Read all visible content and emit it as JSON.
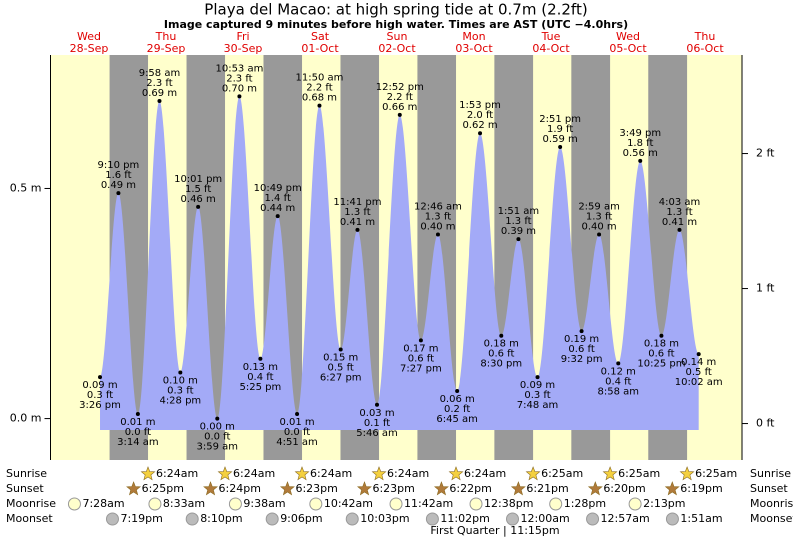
{
  "chart_data": {
    "type": "tide",
    "title": "Playa del Macao: at high  spring tide at 0.7m (2.2ft)",
    "subtitle": "Image captured 9 minutes before high water. Times are AST (UTC −4.0hrs)",
    "ylim": [
      -0.09,
      0.79
    ],
    "yticks": [
      {
        "value": 0.0,
        "label": "0.0 m"
      },
      {
        "value": 0.5,
        "label": "0.5 m"
      }
    ],
    "y2lim": [
      -0.27,
      2.73
    ],
    "y2ticks": [
      {
        "value": 0,
        "label": "0 ft"
      },
      {
        "value": 1,
        "label": "1 ft"
      },
      {
        "value": 2,
        "label": "2 ft"
      }
    ],
    "row_labels": [
      "Sunrise",
      "Sunset",
      "Moonrise",
      "Moonset"
    ],
    "moon_phase": "First Quarter | 11:15pm",
    "colors": {
      "day": "#ffffcc",
      "night": "#999999",
      "water": "#a3aaf7"
    },
    "days": [
      {
        "weekday": "Wed",
        "date": "28-Sep",
        "sunset": "6:25pm",
        "moonrise": "7:28am",
        "moonset": "7:19pm",
        "tides": [
          {
            "time": "3:26 pm",
            "height": 0.09,
            "height_label": "0.09 m",
            "feet_label": "0.3 ft"
          },
          {
            "time": "9:10 pm",
            "height": 0.49,
            "height_label": "0.49 m",
            "feet_label": "1.6 ft"
          }
        ]
      },
      {
        "weekday": "Thu",
        "date": "29-Sep",
        "sunrise": "6:24am",
        "sunset": "6:24pm",
        "moonrise": "8:33am",
        "moonset": "8:10pm",
        "tides": [
          {
            "time": "3:14 am",
            "height": 0.01,
            "height_label": "0.01 m",
            "feet_label": "0.0 ft"
          },
          {
            "time": "9:58 am",
            "height": 0.69,
            "height_label": "0.69 m",
            "feet_label": "2.3 ft"
          },
          {
            "time": "4:28 pm",
            "height": 0.1,
            "height_label": "0.10 m",
            "feet_label": "0.3 ft"
          },
          {
            "time": "10:01 pm",
            "height": 0.46,
            "height_label": "0.46 m",
            "feet_label": "1.5 ft"
          }
        ]
      },
      {
        "weekday": "Fri",
        "date": "30-Sep",
        "sunrise": "6:24am",
        "sunset": "6:23pm",
        "moonrise": "9:38am",
        "moonset": "9:06pm",
        "tides": [
          {
            "time": "3:59 am",
            "height": 0.0,
            "height_label": "0.00 m",
            "feet_label": "0.0 ft"
          },
          {
            "time": "10:53 am",
            "height": 0.7,
            "height_label": "0.70 m",
            "feet_label": "2.3 ft"
          },
          {
            "time": "5:25 pm",
            "height": 0.13,
            "height_label": "0.13 m",
            "feet_label": "0.4 ft"
          },
          {
            "time": "10:49 pm",
            "height": 0.44,
            "height_label": "0.44 m",
            "feet_label": "1.4 ft"
          }
        ]
      },
      {
        "weekday": "Sat",
        "date": "01-Oct",
        "sunrise": "6:24am",
        "sunset": "6:23pm",
        "moonrise": "10:42am",
        "moonset": "10:03pm",
        "tides": [
          {
            "time": "4:51 am",
            "height": 0.01,
            "height_label": "0.01 m",
            "feet_label": "0.0 ft"
          },
          {
            "time": "11:50 am",
            "height": 0.68,
            "height_label": "0.68 m",
            "feet_label": "2.2 ft"
          },
          {
            "time": "6:27 pm",
            "height": 0.15,
            "height_label": "0.15 m",
            "feet_label": "0.5 ft"
          },
          {
            "time": "11:41 pm",
            "height": 0.41,
            "height_label": "0.41 m",
            "feet_label": "1.3 ft"
          }
        ]
      },
      {
        "weekday": "Sun",
        "date": "02-Oct",
        "sunrise": "6:24am",
        "sunset": "6:22pm",
        "moonrise": "11:42am",
        "moonset": "11:02pm",
        "tides": [
          {
            "time": "5:46 am",
            "height": 0.03,
            "height_label": "0.03 m",
            "feet_label": "0.1 ft"
          },
          {
            "time": "12:52 pm",
            "height": 0.66,
            "height_label": "0.66 m",
            "feet_label": "2.2 ft"
          },
          {
            "time": "7:27 pm",
            "height": 0.17,
            "height_label": "0.17 m",
            "feet_label": "0.6 ft"
          }
        ]
      },
      {
        "weekday": "Mon",
        "date": "03-Oct",
        "sunrise": "6:24am",
        "sunset": "6:21pm",
        "moonrise": "12:38pm",
        "tides": [
          {
            "time": "12:46 am",
            "height": 0.4,
            "height_label": "0.40 m",
            "feet_label": "1.3 ft"
          },
          {
            "time": "6:45 am",
            "height": 0.06,
            "height_label": "0.06 m",
            "feet_label": "0.2 ft"
          },
          {
            "time": "1:53 pm",
            "height": 0.62,
            "height_label": "0.62 m",
            "feet_label": "2.0 ft"
          },
          {
            "time": "8:30 pm",
            "height": 0.18,
            "height_label": "0.18 m",
            "feet_label": "0.6 ft"
          }
        ]
      },
      {
        "weekday": "Tue",
        "date": "04-Oct",
        "sunrise": "6:25am",
        "sunset": "6:20pm",
        "moonrise": "1:28pm",
        "moonset": "12:00am",
        "tides": [
          {
            "time": "1:51 am",
            "height": 0.39,
            "height_label": "0.39 m",
            "feet_label": "1.3 ft"
          },
          {
            "time": "7:48 am",
            "height": 0.09,
            "height_label": "0.09 m",
            "feet_label": "0.3 ft"
          },
          {
            "time": "2:51 pm",
            "height": 0.59,
            "height_label": "0.59 m",
            "feet_label": "1.9 ft"
          },
          {
            "time": "9:32 pm",
            "height": 0.19,
            "height_label": "0.19 m",
            "feet_label": "0.6 ft"
          }
        ]
      },
      {
        "weekday": "Wed",
        "date": "05-Oct",
        "sunrise": "6:25am",
        "sunset": "6:19pm",
        "moonrise": "2:13pm",
        "moonset": "12:57am",
        "tides": [
          {
            "time": "2:59 am",
            "height": 0.4,
            "height_label": "0.40 m",
            "feet_label": "1.3 ft"
          },
          {
            "time": "8:58 am",
            "height": 0.12,
            "height_label": "0.12 m",
            "feet_label": "0.4 ft"
          },
          {
            "time": "3:49 pm",
            "height": 0.56,
            "height_label": "0.56 m",
            "feet_label": "1.8 ft"
          },
          {
            "time": "10:25 pm",
            "height": 0.18,
            "height_label": "0.18 m",
            "feet_label": "0.6 ft"
          }
        ]
      },
      {
        "weekday": "Thu",
        "date": "06-Oct",
        "sunrise": "6:25am",
        "moonset": "1:51am",
        "tides": [
          {
            "time": "4:03 am",
            "height": 0.41,
            "height_label": "0.41 m",
            "feet_label": "1.3 ft"
          },
          {
            "time": "10:02 am",
            "height": 0.14,
            "height_label": "0.14 m",
            "feet_label": "0.5 ft"
          }
        ]
      }
    ]
  }
}
